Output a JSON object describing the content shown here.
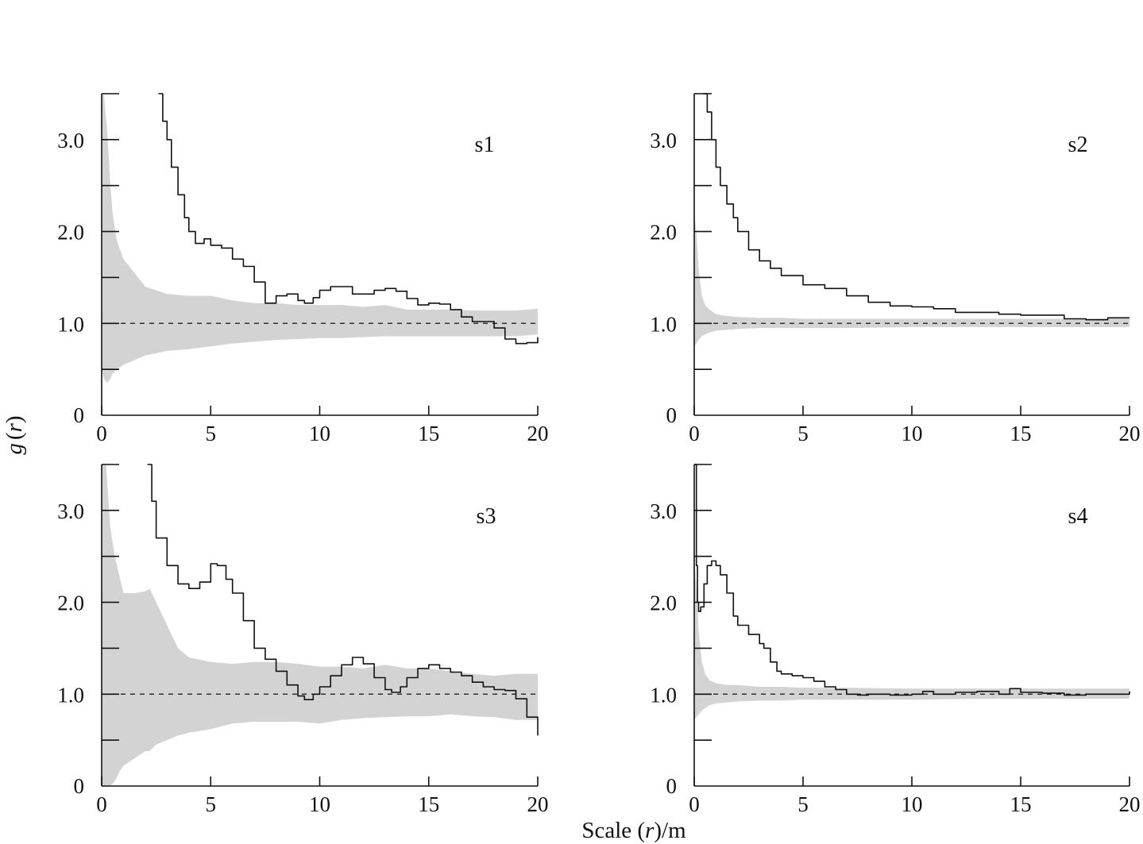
{
  "figure": {
    "shared_ylabel": {
      "g": "g",
      "open": "(",
      "r": "r",
      "close": ")"
    },
    "shared_xlabel": {
      "pre": "Scale (",
      "r": "r",
      "post": ")/m"
    }
  },
  "colors": {
    "line": "#111111",
    "envelope": "#d3d3d3",
    "reference": "#111111"
  },
  "chart_data": [
    {
      "type": "line",
      "panel_label": "s1",
      "xlim": [
        0,
        20
      ],
      "ylim": [
        0,
        3.5
      ],
      "x_ticks": [
        0,
        5,
        10,
        15,
        20
      ],
      "x_tick_labels": [
        "0",
        "5",
        "10",
        "15",
        "20"
      ],
      "y_ticks": [
        0,
        1.0,
        2.0,
        3.0
      ],
      "y_tick_labels": [
        "0",
        "1.0",
        "2.0",
        "3.0"
      ],
      "y_minor_ticks": [
        0.5,
        1.5,
        2.5,
        3.5
      ],
      "reference_line": 1.0,
      "envelope": {
        "x": [
          0,
          0.1,
          0.25,
          0.4,
          0.5,
          0.7,
          1.0,
          1.5,
          2.0,
          3.0,
          4.0,
          5.0,
          6.0,
          7.0,
          8.0,
          9.0,
          10.0,
          11.0,
          12.0,
          13.0,
          14.0,
          15.0,
          16.0,
          17.0,
          18.0,
          19.0,
          20.0
        ],
        "upper": [
          3.5,
          3.5,
          3.1,
          2.5,
          2.2,
          1.9,
          1.7,
          1.55,
          1.4,
          1.32,
          1.3,
          1.3,
          1.25,
          1.22,
          1.22,
          1.2,
          1.2,
          1.2,
          1.18,
          1.2,
          1.15,
          1.15,
          1.15,
          1.14,
          1.14,
          1.14,
          1.16
        ],
        "lower": [
          0.5,
          0.4,
          0.35,
          0.4,
          0.45,
          0.5,
          0.55,
          0.6,
          0.65,
          0.7,
          0.72,
          0.75,
          0.78,
          0.8,
          0.82,
          0.83,
          0.84,
          0.84,
          0.85,
          0.86,
          0.86,
          0.86,
          0.86,
          0.86,
          0.86,
          0.86,
          0.88
        ]
      },
      "series": [
        {
          "x": [
            2.6,
            2.8,
            3.0,
            3.2,
            3.5,
            3.8,
            4.0,
            4.3,
            4.7,
            5.0,
            5.5,
            6.0,
            6.5,
            7.0,
            7.5,
            8.0,
            8.5,
            9.0,
            9.3,
            9.7,
            10.0,
            10.5,
            11.0,
            11.5,
            12.0,
            12.5,
            13.0,
            13.5,
            14.0,
            14.5,
            15.0,
            15.5,
            16.0,
            16.5,
            17.0,
            17.5,
            18.0,
            18.5,
            19.0,
            19.5,
            20.0
          ],
          "y": [
            3.5,
            3.2,
            3.0,
            2.7,
            2.4,
            2.15,
            2.0,
            1.87,
            1.92,
            1.85,
            1.82,
            1.7,
            1.62,
            1.45,
            1.22,
            1.3,
            1.32,
            1.25,
            1.22,
            1.28,
            1.36,
            1.4,
            1.4,
            1.32,
            1.32,
            1.36,
            1.38,
            1.35,
            1.27,
            1.2,
            1.22,
            1.21,
            1.15,
            1.07,
            1.02,
            1.02,
            0.95,
            0.83,
            0.78,
            0.79,
            0.85
          ]
        }
      ]
    },
    {
      "type": "line",
      "panel_label": "s2",
      "xlim": [
        0,
        20
      ],
      "ylim": [
        0,
        3.5
      ],
      "x_ticks": [
        0,
        5,
        10,
        15,
        20
      ],
      "x_tick_labels": [
        "0",
        "5",
        "10",
        "15",
        "20"
      ],
      "y_ticks": [
        0,
        1.0,
        2.0,
        3.0
      ],
      "y_tick_labels": [
        "0",
        "1.0",
        "2.0",
        "3.0"
      ],
      "y_minor_ticks": [
        0.5,
        1.5,
        2.5,
        3.5
      ],
      "reference_line": 1.0,
      "envelope": {
        "x": [
          0,
          0.1,
          0.2,
          0.35,
          0.5,
          0.7,
          1.0,
          1.5,
          2.0,
          3.0,
          4.0,
          5.0,
          7.0,
          10.0,
          13.0,
          16.0,
          20.0
        ],
        "upper": [
          2.2,
          2.0,
          1.6,
          1.3,
          1.2,
          1.15,
          1.1,
          1.08,
          1.07,
          1.06,
          1.06,
          1.05,
          1.05,
          1.05,
          1.05,
          1.05,
          1.05
        ],
        "lower": [
          0.75,
          0.78,
          0.82,
          0.86,
          0.88,
          0.9,
          0.92,
          0.93,
          0.94,
          0.95,
          0.95,
          0.95,
          0.95,
          0.96,
          0.96,
          0.96,
          0.96
        ]
      },
      "series": [
        {
          "x": [
            0.4,
            0.6,
            0.8,
            1.0,
            1.2,
            1.5,
            1.8,
            2.0,
            2.5,
            3.0,
            3.5,
            4.0,
            5.0,
            6.0,
            7.0,
            8.0,
            9.0,
            10.0,
            11.0,
            12.0,
            13.0,
            14.0,
            15.0,
            16.0,
            17.0,
            18.0,
            19.0,
            20.0
          ],
          "y": [
            3.5,
            3.3,
            3.0,
            2.7,
            2.5,
            2.3,
            2.15,
            2.0,
            1.8,
            1.68,
            1.6,
            1.52,
            1.42,
            1.38,
            1.3,
            1.23,
            1.19,
            1.18,
            1.16,
            1.12,
            1.12,
            1.1,
            1.09,
            1.09,
            1.05,
            1.04,
            1.06,
            1.06
          ]
        }
      ]
    },
    {
      "type": "line",
      "panel_label": "s3",
      "xlim": [
        0,
        20
      ],
      "ylim": [
        0,
        3.5
      ],
      "x_ticks": [
        0,
        5,
        10,
        15,
        20
      ],
      "x_tick_labels": [
        "0",
        "5",
        "10",
        "15",
        "20"
      ],
      "y_ticks": [
        0,
        1.0,
        2.0,
        3.0
      ],
      "y_tick_labels": [
        "0",
        "1.0",
        "2.0",
        "3.0"
      ],
      "y_minor_ticks": [
        0.5,
        1.5,
        2.5,
        3.5
      ],
      "reference_line": 1.0,
      "envelope": {
        "x": [
          0,
          0.2,
          0.4,
          0.6,
          0.8,
          1.0,
          1.5,
          2.0,
          2.2,
          2.5,
          3.0,
          3.5,
          4.0,
          5.0,
          6.0,
          7.0,
          8.0,
          9.0,
          10.0,
          11.0,
          12.0,
          13.0,
          14.0,
          15.0,
          16.0,
          17.0,
          18.0,
          19.0,
          20.0
        ],
        "upper": [
          3.5,
          3.5,
          2.8,
          2.5,
          2.3,
          2.1,
          2.1,
          2.12,
          2.15,
          2.0,
          1.75,
          1.5,
          1.4,
          1.35,
          1.33,
          1.35,
          1.35,
          1.33,
          1.3,
          1.3,
          1.28,
          1.32,
          1.28,
          1.28,
          1.25,
          1.22,
          1.2,
          1.22,
          1.22
        ],
        "lower": [
          0.0,
          0.0,
          0.0,
          0.05,
          0.15,
          0.22,
          0.3,
          0.38,
          0.38,
          0.45,
          0.5,
          0.55,
          0.58,
          0.62,
          0.68,
          0.7,
          0.7,
          0.7,
          0.68,
          0.72,
          0.74,
          0.75,
          0.76,
          0.76,
          0.78,
          0.76,
          0.75,
          0.72,
          0.72
        ]
      },
      "series": [
        {
          "x": [
            2.1,
            2.3,
            2.5,
            3.0,
            3.5,
            4.0,
            4.5,
            5.0,
            5.3,
            5.7,
            6.0,
            6.5,
            7.0,
            7.5,
            8.0,
            8.5,
            9.0,
            9.3,
            9.7,
            10.0,
            10.5,
            11.0,
            11.5,
            12.0,
            12.5,
            13.0,
            13.3,
            13.7,
            14.0,
            14.5,
            15.0,
            15.5,
            16.0,
            16.5,
            17.0,
            17.5,
            18.0,
            18.5,
            19.0,
            19.5,
            20.0
          ],
          "y": [
            3.5,
            3.1,
            2.7,
            2.4,
            2.2,
            2.15,
            2.22,
            2.42,
            2.4,
            2.25,
            2.1,
            1.8,
            1.5,
            1.38,
            1.25,
            1.1,
            0.98,
            0.94,
            1.0,
            1.08,
            1.2,
            1.32,
            1.4,
            1.33,
            1.18,
            1.05,
            1.02,
            1.08,
            1.18,
            1.28,
            1.32,
            1.28,
            1.24,
            1.2,
            1.13,
            1.08,
            1.05,
            1.04,
            0.95,
            0.75,
            0.55
          ]
        }
      ]
    },
    {
      "type": "line",
      "panel_label": "s4",
      "xlim": [
        0,
        20
      ],
      "ylim": [
        0,
        3.5
      ],
      "x_ticks": [
        0,
        5,
        10,
        15,
        20
      ],
      "x_tick_labels": [
        "0",
        "5",
        "10",
        "15",
        "20"
      ],
      "y_ticks": [
        0,
        1.0,
        2.0,
        3.0
      ],
      "y_tick_labels": [
        "0",
        "1.0",
        "2.0",
        "3.0"
      ],
      "y_minor_ticks": [
        0.5,
        1.5,
        2.5,
        3.5
      ],
      "reference_line": 1.0,
      "envelope": {
        "x": [
          0,
          0.1,
          0.2,
          0.35,
          0.5,
          0.7,
          1.0,
          1.5,
          2.0,
          3.0,
          4.0,
          5.0,
          7.0,
          10.0,
          13.0,
          16.0,
          20.0
        ],
        "upper": [
          2.5,
          2.2,
          1.7,
          1.35,
          1.22,
          1.15,
          1.12,
          1.1,
          1.1,
          1.08,
          1.08,
          1.07,
          1.07,
          1.06,
          1.06,
          1.06,
          1.06
        ],
        "lower": [
          0.72,
          0.75,
          0.78,
          0.82,
          0.85,
          0.88,
          0.9,
          0.91,
          0.92,
          0.93,
          0.93,
          0.94,
          0.94,
          0.94,
          0.95,
          0.95,
          0.95
        ]
      },
      "series": [
        {
          "x": [
            0.02,
            0.05,
            0.1,
            0.15,
            0.2,
            0.3,
            0.45,
            0.6,
            0.8,
            1.0,
            1.2,
            1.5,
            1.8,
            2.0,
            2.5,
            3.0,
            3.2,
            3.5,
            3.8,
            4.0,
            4.5,
            5.0,
            5.5,
            6.0,
            6.5,
            7.0,
            7.5,
            8.0,
            9.0,
            10.0,
            10.5,
            11.0,
            12.0,
            13.0,
            14.0,
            14.5,
            15.0,
            16.0,
            17.0,
            18.0,
            19.0,
            20.0
          ],
          "y": [
            3.5,
            3.5,
            2.4,
            2.0,
            1.9,
            1.95,
            2.2,
            2.4,
            2.45,
            2.4,
            2.3,
            2.1,
            1.85,
            1.75,
            1.65,
            1.55,
            1.5,
            1.35,
            1.25,
            1.22,
            1.2,
            1.18,
            1.14,
            1.08,
            1.05,
            1.0,
            0.99,
            1.0,
            0.99,
            1.0,
            1.03,
            1.0,
            1.02,
            1.03,
            1.0,
            1.06,
            1.02,
            1.01,
            0.99,
            1.0,
            1.0,
            1.03
          ]
        }
      ]
    }
  ]
}
